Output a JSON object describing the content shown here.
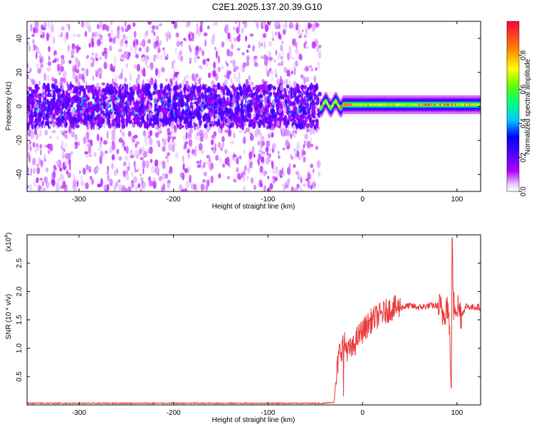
{
  "title": "C2E1.2025.137.20.39.G10",
  "chart_data": [
    {
      "type": "heatmap",
      "xlabel": "Height of straight line (km)",
      "ylabel": "Frequency (Hz)",
      "xlim": [
        -355,
        125
      ],
      "ylim": [
        -50,
        50
      ],
      "xticks": [
        -300,
        -200,
        -100,
        0,
        100
      ],
      "yticks": [
        -40,
        -20,
        0,
        20,
        40
      ],
      "colorbar": {
        "label": "Normalized spectral amplitude",
        "range": [
          0.0,
          1.0
        ],
        "ticks": [
          0.0,
          0.2,
          0.4,
          0.6,
          0.8
        ],
        "colormap": [
          "#ffffff",
          "#b000ff",
          "#5000ff",
          "#0000ff",
          "#00c8ff",
          "#00ff80",
          "#b4ff00",
          "#ffff00",
          "#ff8000",
          "#ff0040"
        ]
      },
      "description_points": {
        "noise_region_x": [
          -355,
          -45
        ],
        "signal_region_x": [
          -45,
          125
        ],
        "signal_center_hz": 1,
        "signal_halfwidth_hz": 2,
        "peak_amplitude": 0.95,
        "peak_x": [
          60,
          115
        ]
      }
    },
    {
      "type": "line",
      "xlabel": "Height of straight line (km)",
      "ylabel": "SNR (10 * v/v)",
      "yscale_label": "(x10",
      "yscale_exp": "4",
      "xlim": [
        -355,
        125
      ],
      "ylim": [
        0,
        3
      ],
      "xticks": [
        -300,
        -200,
        -100,
        0,
        100
      ],
      "yticks": [
        0.5,
        1.0,
        1.5,
        2.0,
        2.5
      ],
      "color": "#e8393a",
      "series": [
        {
          "x": [
            -355,
            -300,
            -200,
            -100,
            -40,
            -30,
            -28,
            -25,
            -22,
            -20,
            -15,
            -10,
            -5,
            0,
            5,
            10,
            20,
            30,
            40,
            50,
            60,
            70,
            80,
            85,
            90,
            92,
            94,
            95,
            96,
            98,
            100,
            105,
            110,
            115,
            120,
            125
          ],
          "y": [
            0.03,
            0.03,
            0.03,
            0.03,
            0.03,
            0.05,
            0.4,
            0.9,
            1.0,
            1.1,
            0.95,
            1.0,
            1.2,
            1.3,
            1.4,
            1.5,
            1.6,
            1.7,
            1.72,
            1.75,
            1.72,
            1.75,
            1.75,
            1.6,
            1.8,
            1.3,
            0.5,
            2.9,
            1.7,
            1.8,
            1.75,
            1.6,
            1.75,
            1.72,
            1.73,
            1.72
          ]
        }
      ]
    }
  ]
}
